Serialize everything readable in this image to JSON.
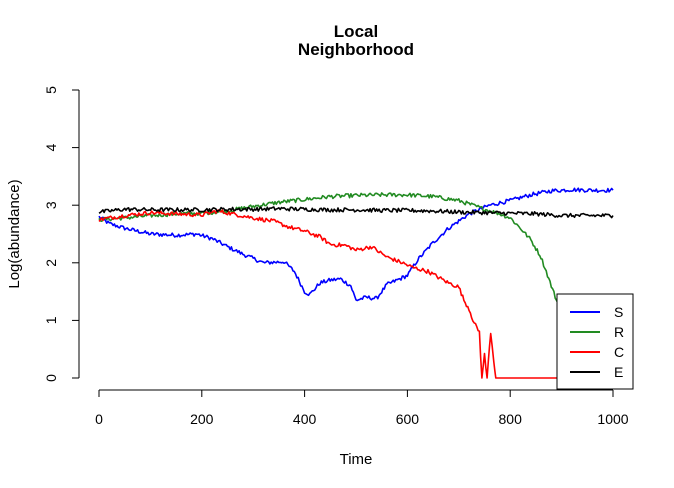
{
  "chart_data": {
    "type": "line",
    "title": [
      "Local",
      "Neighborhood"
    ],
    "xlabel": "Time",
    "ylabel": "Log(abundance)",
    "xlim": [
      0,
      1000
    ],
    "ylim": [
      0,
      5
    ],
    "x_ticks": [
      0,
      200,
      400,
      600,
      800,
      1000
    ],
    "y_ticks": [
      0,
      1,
      2,
      3,
      4,
      5
    ],
    "grid": false,
    "legend_position": "bottom-right",
    "series": [
      {
        "name": "S",
        "color": "#0000ff",
        "points": [
          [
            0,
            2.8
          ],
          [
            20,
            2.68
          ],
          [
            50,
            2.6
          ],
          [
            100,
            2.5
          ],
          [
            150,
            2.48
          ],
          [
            190,
            2.5
          ],
          [
            220,
            2.42
          ],
          [
            250,
            2.28
          ],
          [
            280,
            2.15
          ],
          [
            320,
            2.0
          ],
          [
            360,
            2.02
          ],
          [
            380,
            1.85
          ],
          [
            400,
            1.5
          ],
          [
            410,
            1.45
          ],
          [
            430,
            1.65
          ],
          [
            450,
            1.7
          ],
          [
            470,
            1.72
          ],
          [
            490,
            1.6
          ],
          [
            500,
            1.35
          ],
          [
            520,
            1.4
          ],
          [
            540,
            1.38
          ],
          [
            560,
            1.62
          ],
          [
            580,
            1.7
          ],
          [
            600,
            1.78
          ],
          [
            620,
            2.05
          ],
          [
            650,
            2.35
          ],
          [
            680,
            2.6
          ],
          [
            720,
            2.85
          ],
          [
            760,
            3.0
          ],
          [
            800,
            3.08
          ],
          [
            840,
            3.18
          ],
          [
            880,
            3.25
          ],
          [
            920,
            3.27
          ],
          [
            960,
            3.26
          ],
          [
            1000,
            3.26
          ]
        ]
      },
      {
        "name": "R",
        "color": "#228b22",
        "points": [
          [
            0,
            2.75
          ],
          [
            50,
            2.78
          ],
          [
            100,
            2.82
          ],
          [
            150,
            2.85
          ],
          [
            200,
            2.86
          ],
          [
            250,
            2.9
          ],
          [
            300,
            2.98
          ],
          [
            350,
            3.05
          ],
          [
            400,
            3.1
          ],
          [
            450,
            3.15
          ],
          [
            500,
            3.17
          ],
          [
            550,
            3.18
          ],
          [
            600,
            3.18
          ],
          [
            650,
            3.15
          ],
          [
            700,
            3.08
          ],
          [
            750,
            2.93
          ],
          [
            780,
            2.85
          ],
          [
            800,
            2.78
          ],
          [
            820,
            2.6
          ],
          [
            840,
            2.4
          ],
          [
            860,
            2.1
          ],
          [
            870,
            1.85
          ],
          [
            880,
            1.6
          ],
          [
            890,
            1.35
          ],
          [
            900,
            1.15
          ],
          [
            910,
            1.05
          ]
        ]
      },
      {
        "name": "C",
        "color": "#ff0000",
        "points": [
          [
            0,
            2.75
          ],
          [
            50,
            2.82
          ],
          [
            100,
            2.87
          ],
          [
            150,
            2.85
          ],
          [
            200,
            2.83
          ],
          [
            230,
            2.9
          ],
          [
            260,
            2.85
          ],
          [
            300,
            2.78
          ],
          [
            340,
            2.72
          ],
          [
            370,
            2.62
          ],
          [
            400,
            2.55
          ],
          [
            430,
            2.45
          ],
          [
            450,
            2.32
          ],
          [
            480,
            2.3
          ],
          [
            500,
            2.22
          ],
          [
            530,
            2.28
          ],
          [
            560,
            2.1
          ],
          [
            590,
            2.0
          ],
          [
            610,
            1.92
          ],
          [
            640,
            1.85
          ],
          [
            660,
            1.75
          ],
          [
            680,
            1.65
          ],
          [
            700,
            1.58
          ],
          [
            710,
            1.35
          ],
          [
            720,
            1.2
          ],
          [
            730,
            0.95
          ],
          [
            740,
            0.8
          ],
          [
            745,
            0.0
          ],
          [
            750,
            0.4
          ],
          [
            755,
            0.0
          ],
          [
            762,
            0.8
          ],
          [
            768,
            0.3
          ],
          [
            772,
            0.0
          ],
          [
            780,
            0.0
          ],
          [
            900,
            0.0
          ],
          [
            1000,
            0.0
          ]
        ]
      },
      {
        "name": "E",
        "color": "#000000",
        "points": [
          [
            0,
            2.88
          ],
          [
            50,
            2.93
          ],
          [
            100,
            2.92
          ],
          [
            150,
            2.92
          ],
          [
            200,
            2.92
          ],
          [
            250,
            2.93
          ],
          [
            300,
            2.93
          ],
          [
            350,
            2.94
          ],
          [
            400,
            2.93
          ],
          [
            450,
            2.92
          ],
          [
            500,
            2.92
          ],
          [
            550,
            2.91
          ],
          [
            600,
            2.91
          ],
          [
            650,
            2.9
          ],
          [
            700,
            2.88
          ],
          [
            750,
            2.87
          ],
          [
            800,
            2.86
          ],
          [
            850,
            2.85
          ],
          [
            900,
            2.82
          ],
          [
            950,
            2.82
          ],
          [
            1000,
            2.82
          ]
        ]
      }
    ]
  }
}
